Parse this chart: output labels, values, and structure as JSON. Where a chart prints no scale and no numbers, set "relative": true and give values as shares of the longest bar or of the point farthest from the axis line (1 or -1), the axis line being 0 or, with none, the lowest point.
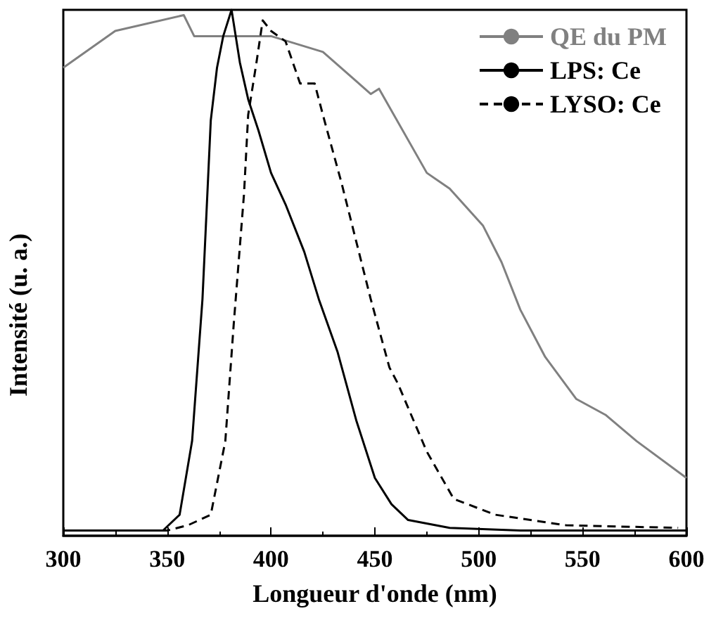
{
  "chart_data": {
    "type": "line",
    "relative": true,
    "xlabel": "Longueur d'onde (nm)",
    "ylabel": "Intensité (u. a.)",
    "xlim": [
      300,
      600
    ],
    "xticks": [
      300,
      350,
      400,
      450,
      500,
      550,
      600
    ],
    "tick_labels": "x",
    "grid": false,
    "legend": "top right",
    "marker": "none",
    "series": [
      {
        "name": "QE du PM",
        "color": "#808080",
        "line_style": "solid",
        "x": [
          300,
          325,
          358,
          363,
          400,
          425,
          448,
          452,
          475,
          486,
          502,
          511,
          520,
          532,
          547,
          561,
          576,
          600
        ],
        "values": [
          0.89,
          0.96,
          0.99,
          0.95,
          0.95,
          0.92,
          0.84,
          0.85,
          0.69,
          0.66,
          0.59,
          0.52,
          0.43,
          0.34,
          0.26,
          0.23,
          0.18,
          0.11
        ]
      },
      {
        "name": "LPS: Ce",
        "color": "#000000",
        "line_style": "solid",
        "x": [
          300,
          348,
          356,
          362,
          367,
          371,
          374,
          377,
          381,
          385,
          389,
          394,
          400,
          407,
          416,
          423,
          432,
          441,
          450,
          458,
          466,
          486,
          520,
          600
        ],
        "values": [
          0.01,
          0.01,
          0.04,
          0.18,
          0.45,
          0.79,
          0.89,
          0.95,
          1.0,
          0.9,
          0.83,
          0.77,
          0.69,
          0.63,
          0.54,
          0.45,
          0.35,
          0.22,
          0.11,
          0.06,
          0.03,
          0.015,
          0.01,
          0.01
        ]
      },
      {
        "name": "LYSO: Ce",
        "color": "#000000",
        "line_style": "dashed",
        "x": [
          300,
          350,
          360,
          371,
          378,
          382,
          387,
          389,
          393,
          396,
          400,
          407,
          414,
          421,
          425,
          434,
          441,
          448,
          457,
          461,
          475,
          488,
          508,
          542,
          596
        ],
        "values": [
          0.01,
          0.01,
          0.02,
          0.04,
          0.18,
          0.4,
          0.65,
          0.8,
          0.9,
          0.98,
          0.96,
          0.94,
          0.86,
          0.86,
          0.8,
          0.67,
          0.56,
          0.45,
          0.32,
          0.29,
          0.16,
          0.07,
          0.04,
          0.02,
          0.015
        ]
      }
    ]
  }
}
